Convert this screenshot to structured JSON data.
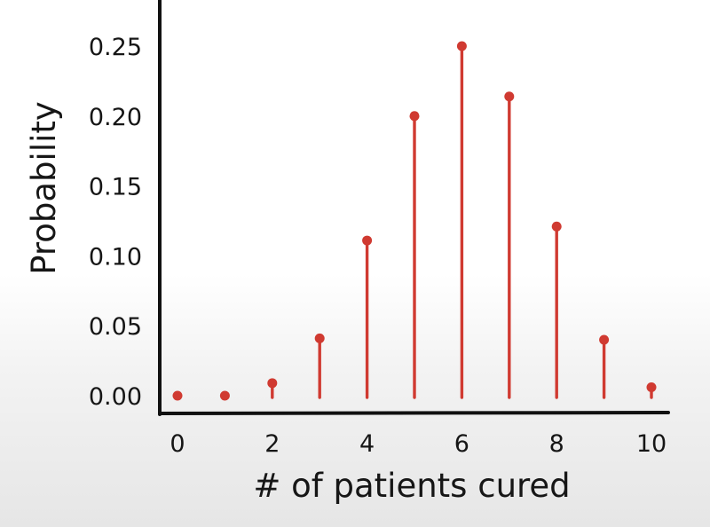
{
  "chart_data": {
    "type": "stem",
    "title": "",
    "xlabel": "# of patients cured",
    "ylabel": "Probability",
    "x": [
      0,
      1,
      2,
      3,
      4,
      5,
      6,
      7,
      8,
      9,
      10
    ],
    "values": [
      0.0,
      0.0,
      0.009,
      0.041,
      0.111,
      0.2,
      0.25,
      0.214,
      0.121,
      0.04,
      0.006
    ],
    "xticks": [
      0,
      2,
      4,
      6,
      8,
      10
    ],
    "xtick_labels": [
      "0",
      "2",
      "4",
      "6",
      "8",
      "10"
    ],
    "yticks": [
      0.0,
      0.05,
      0.1,
      0.15,
      0.2,
      0.25
    ],
    "ytick_labels": [
      "0.00",
      "0.05",
      "0.10",
      "0.15",
      "0.20",
      "0.25"
    ],
    "xlim": [
      0,
      10
    ],
    "ylim": [
      0,
      0.28
    ],
    "grid": false,
    "colors": {
      "stem": "#d03a31",
      "axis": "#111111",
      "text": "#161616"
    }
  }
}
